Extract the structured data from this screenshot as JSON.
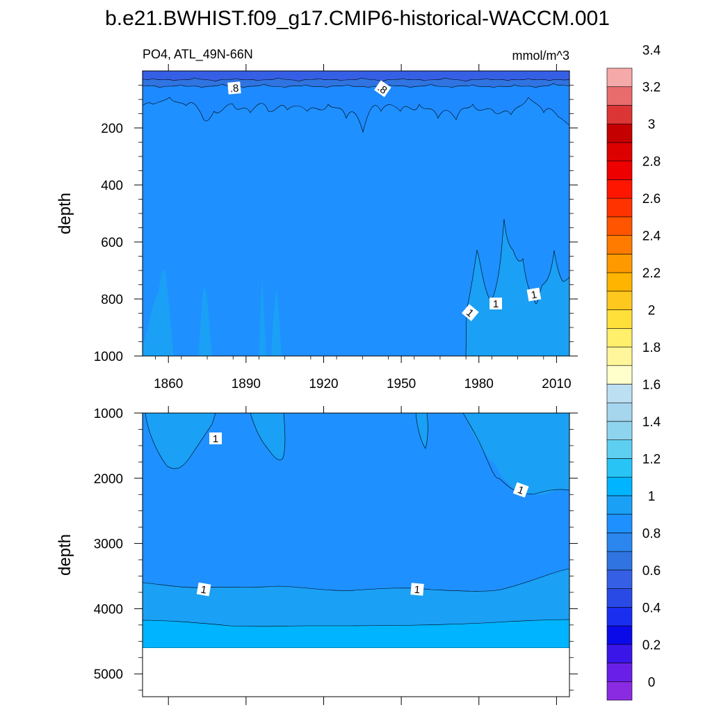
{
  "title": "b.e21.BWHIST.f09_g17.CMIP6-historical-WACCM.001",
  "subtitle_left": "PO4, ATL_49N-66N",
  "subtitle_right": "mmol/m^3",
  "chart_data": [
    {
      "type": "heatmap",
      "panel": "upper",
      "variable": "PO4",
      "region": "ATL_49N-66N",
      "units": "mmol/m^3",
      "xlabel": "",
      "ylabel": "depth",
      "xlim": [
        1850,
        2015
      ],
      "ylim": [
        1000,
        0
      ],
      "xticks": [
        "1860",
        "1890",
        "1920",
        "1950",
        "1980",
        "2010"
      ],
      "yticks": [
        "200",
        "400",
        "600",
        "800",
        "1000"
      ],
      "contour_levels_fill": [
        {
          "depth_range": [
            0,
            20
          ],
          "value": 0.6
        },
        {
          "depth_range": [
            20,
            50
          ],
          "value": 0.7
        },
        {
          "depth_range": [
            50,
            150
          ],
          "value": 0.8
        },
        {
          "depth_range": [
            150,
            1000
          ],
          "value": 0.9
        }
      ],
      "contour_labels": [
        ".8",
        ".8",
        "1",
        "1",
        "1"
      ],
      "deep_feature": {
        "years": [
          1975,
          2015
        ],
        "depth_top": 520,
        "value": 1.0
      }
    },
    {
      "type": "heatmap",
      "panel": "lower",
      "variable": "PO4",
      "xlabel": "",
      "ylabel": "depth",
      "xlim": [
        1850,
        2015
      ],
      "ylim": [
        5350,
        1000
      ],
      "yticks": [
        "1000",
        "2000",
        "3000",
        "4000",
        "5000"
      ],
      "layers": [
        {
          "depth_range": [
            1000,
            3700
          ],
          "value": 0.9
        },
        {
          "depth_range": [
            3700,
            4200
          ],
          "value": 1.0
        },
        {
          "depth_range": [
            4200,
            4620
          ],
          "value": 1.1
        }
      ],
      "missing_below_depth": 4620,
      "contour_labels": [
        "1",
        "1",
        "1",
        "1"
      ]
    }
  ],
  "colorbar": {
    "labels": [
      "0",
      "0.2",
      "0.4",
      "0.6",
      "0.8",
      "1",
      "1.2",
      "1.4",
      "1.6",
      "1.8",
      "2",
      "2.2",
      "2.4",
      "2.6",
      "2.8",
      "3",
      "3.2",
      "3.4"
    ],
    "colors": [
      "#8a2be2",
      "#6a1fe6",
      "#3b16e8",
      "#0a0ae8",
      "#1a2ef0",
      "#2a4ae6",
      "#3560e6",
      "#2f74e0",
      "#2b86ee",
      "#1e90ff",
      "#1aa0f5",
      "#00b4ff",
      "#28c4f6",
      "#5ecff0",
      "#8fd4ef",
      "#a6d5ee",
      "#bddff2",
      "#ffffcc",
      "#fff59a",
      "#ffef6a",
      "#ffdf3a",
      "#ffc81e",
      "#ffb400",
      "#ff9900",
      "#ff7b00",
      "#ff5500",
      "#ff3300",
      "#ff1600",
      "#ee0000",
      "#dd0000",
      "#c40000",
      "#dc3535",
      "#e86c6c",
      "#f5a9a9"
    ]
  }
}
